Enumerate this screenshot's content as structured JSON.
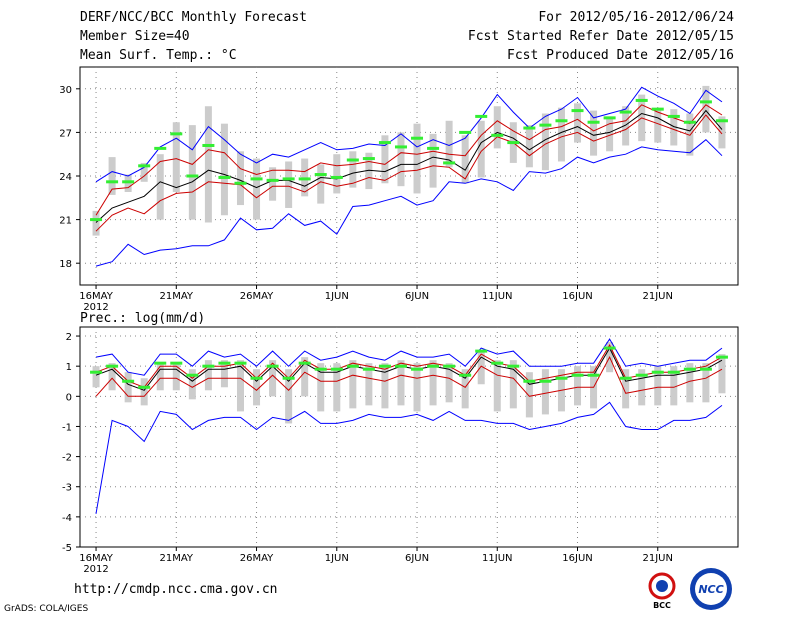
{
  "header": {
    "title": "DERF/NCC/BCC Monthly Forecast",
    "member_size": "Member Size=40",
    "variable": "Mean Surf. Temp.: °C",
    "period": "For 2012/05/16-2012/06/24",
    "fcst_started": "Fcst Started Refer Date 2012/05/15",
    "fcst_produced": "Fcst Produced Date 2012/05/16"
  },
  "footer": {
    "url": "http://cmdp.ncc.cma.gov.cn",
    "grads": "GrADS: COLA/IGES",
    "logo_bcc": "BCC",
    "logo_ncc": "NCC"
  },
  "colors": {
    "max_min": "#0000ff",
    "spread": "#cc0000",
    "mean": "#000000",
    "box": "#cccccc",
    "marker": "#33ee33"
  },
  "chart_data": [
    {
      "type": "line",
      "title": "Mean Surf. Temp.: °C",
      "ylim": [
        16.5,
        31.5
      ],
      "yticks": [
        18,
        21,
        24,
        27,
        30
      ],
      "x_tick_labels": [
        "16MAY",
        "21MAY",
        "26MAY",
        "1JUN",
        "6JUN",
        "11JUN",
        "16JUN",
        "21JUN"
      ],
      "x_tick_days": [
        0,
        5,
        10,
        15,
        20,
        25,
        30,
        35
      ],
      "x_year_label": "2012",
      "n_days": 40,
      "series": [
        {
          "name": "max",
          "values": [
            23.6,
            24.3,
            24.0,
            24.6,
            26.0,
            26.6,
            25.8,
            27.4,
            26.5,
            25.5,
            24.9,
            25.5,
            25.3,
            25.8,
            26.3,
            25.8,
            25.9,
            26.2,
            26.1,
            26.9,
            26.0,
            26.5,
            26.1,
            26.6,
            28.0,
            29.6,
            28.4,
            27.3,
            28.1,
            28.6,
            29.4,
            28.0,
            28.3,
            28.6,
            30.1,
            29.5,
            29.0,
            28.3,
            29.9,
            29.1
          ]
        },
        {
          "name": "upper",
          "values": [
            21.3,
            23.1,
            23.2,
            24.0,
            25.0,
            25.2,
            24.8,
            25.8,
            25.6,
            24.5,
            24.1,
            24.4,
            24.4,
            24.3,
            24.9,
            24.7,
            24.8,
            25.0,
            24.8,
            25.6,
            25.5,
            25.7,
            25.5,
            25.4,
            26.8,
            27.8,
            27.1,
            26.5,
            27.2,
            27.4,
            27.9,
            27.1,
            27.6,
            27.8,
            28.9,
            28.4,
            28.0,
            27.6,
            28.9,
            28.2
          ]
        },
        {
          "name": "mean",
          "values": [
            20.8,
            21.8,
            22.2,
            22.6,
            23.6,
            23.2,
            23.6,
            24.4,
            24.1,
            23.7,
            23.2,
            23.7,
            23.7,
            23.3,
            23.9,
            23.8,
            24.2,
            24.4,
            24.3,
            24.8,
            24.8,
            25.3,
            25.1,
            24.4,
            26.3,
            27.0,
            26.6,
            25.8,
            26.5,
            27.0,
            27.4,
            26.8,
            27.0,
            27.5,
            28.3,
            28.0,
            27.4,
            27.1,
            28.5,
            27.2
          ]
        },
        {
          "name": "lower",
          "values": [
            20.2,
            21.3,
            21.8,
            21.4,
            22.3,
            22.8,
            22.9,
            23.6,
            23.5,
            23.4,
            22.5,
            23.3,
            23.3,
            22.9,
            23.6,
            23.3,
            23.5,
            23.9,
            23.7,
            24.3,
            24.4,
            24.7,
            24.6,
            23.8,
            25.7,
            26.7,
            26.3,
            25.4,
            26.2,
            26.7,
            27.0,
            26.4,
            26.8,
            27.2,
            28.0,
            27.6,
            27.2,
            26.8,
            28.2,
            26.9
          ]
        },
        {
          "name": "min",
          "values": [
            17.8,
            18.1,
            19.3,
            18.6,
            18.9,
            19.0,
            19.2,
            19.2,
            19.6,
            21.1,
            20.3,
            20.4,
            21.4,
            20.6,
            20.9,
            20.0,
            21.9,
            22.0,
            22.3,
            22.6,
            22.0,
            22.3,
            23.6,
            23.5,
            23.8,
            23.6,
            23.0,
            24.3,
            24.2,
            24.5,
            25.3,
            24.9,
            25.3,
            25.5,
            26.0,
            25.8,
            25.7,
            25.6,
            26.5,
            25.4
          ]
        },
        {
          "name": "box_top",
          "values": [
            21.6,
            25.3,
            24.1,
            24.9,
            25.5,
            27.7,
            27.5,
            28.8,
            27.6,
            25.7,
            25.2,
            24.6,
            25.0,
            25.2,
            24.8,
            25.5,
            25.7,
            25.6,
            26.8,
            27.0,
            27.6,
            26.9,
            27.8,
            26.8,
            27.8,
            28.8,
            27.7,
            27.5,
            28.3,
            28.7,
            29.0,
            28.5,
            28.1,
            28.8,
            29.6,
            28.6,
            28.6,
            28.3,
            30.2,
            28.1
          ]
        },
        {
          "name": "box_bottom",
          "values": [
            19.9,
            22.7,
            22.9,
            23.6,
            21.0,
            22.9,
            21.0,
            20.8,
            21.3,
            22.0,
            21.0,
            22.3,
            21.8,
            22.6,
            22.1,
            22.8,
            23.2,
            23.1,
            23.5,
            23.3,
            22.8,
            23.2,
            24.6,
            23.5,
            23.9,
            25.9,
            24.9,
            24.6,
            24.4,
            25.0,
            26.3,
            25.4,
            25.7,
            26.1,
            26.4,
            26.3,
            26.1,
            25.4,
            27.0,
            25.9
          ]
        },
        {
          "name": "marker",
          "values": [
            21.0,
            23.6,
            23.6,
            24.7,
            25.9,
            26.9,
            24.0,
            26.1,
            23.9,
            23.5,
            23.8,
            23.7,
            23.8,
            23.8,
            24.1,
            23.9,
            25.1,
            25.2,
            26.3,
            26.0,
            26.6,
            25.9,
            24.9,
            27.0,
            28.1,
            26.8,
            26.3,
            27.3,
            27.5,
            27.8,
            28.5,
            27.7,
            28.0,
            28.4,
            29.2,
            28.6,
            28.1,
            27.7,
            29.1,
            27.8
          ]
        }
      ]
    },
    {
      "type": "line",
      "title": "Prec.: log(mm/d)",
      "ylim": [
        -5,
        2.3
      ],
      "yticks": [
        -5,
        -4,
        -3,
        -2,
        -1,
        0,
        1,
        2
      ],
      "x_tick_labels": [
        "16MAY",
        "21MAY",
        "26MAY",
        "1JUN",
        "6JUN",
        "11JUN",
        "16JUN",
        "21JUN"
      ],
      "x_tick_days": [
        0,
        5,
        10,
        15,
        20,
        25,
        30,
        35
      ],
      "x_year_label": "2012",
      "n_days": 40,
      "series": [
        {
          "name": "max",
          "values": [
            1.3,
            1.4,
            0.8,
            0.7,
            1.4,
            1.4,
            1.0,
            1.5,
            1.3,
            1.4,
            1.0,
            1.5,
            1.0,
            1.5,
            1.2,
            1.3,
            1.5,
            1.3,
            1.2,
            1.5,
            1.3,
            1.3,
            1.4,
            1.0,
            1.6,
            1.4,
            1.5,
            1.0,
            1.0,
            1.0,
            1.1,
            1.1,
            1.9,
            1.0,
            1.1,
            1.0,
            1.1,
            1.2,
            1.2,
            1.6
          ]
        },
        {
          "name": "upper",
          "values": [
            0.8,
            1.0,
            0.5,
            0.3,
            1.0,
            1.0,
            0.6,
            1.0,
            1.0,
            1.1,
            0.6,
            1.1,
            0.6,
            1.2,
            0.9,
            0.9,
            1.1,
            1.0,
            0.9,
            1.1,
            1.0,
            1.1,
            1.0,
            0.7,
            1.4,
            1.1,
            1.0,
            0.5,
            0.6,
            0.7,
            0.8,
            0.8,
            1.7,
            0.6,
            0.7,
            0.8,
            0.8,
            0.9,
            1.0,
            1.3
          ]
        },
        {
          "name": "mean",
          "values": [
            0.7,
            0.9,
            0.4,
            0.2,
            0.9,
            0.9,
            0.5,
            0.9,
            0.9,
            1.0,
            0.5,
            1.0,
            0.5,
            1.1,
            0.8,
            0.8,
            1.0,
            0.9,
            0.8,
            1.0,
            0.9,
            1.0,
            0.9,
            0.6,
            1.3,
            1.0,
            0.9,
            0.4,
            0.5,
            0.6,
            0.7,
            0.7,
            1.6,
            0.5,
            0.6,
            0.7,
            0.7,
            0.8,
            0.9,
            1.2
          ]
        },
        {
          "name": "lower",
          "values": [
            0.0,
            0.6,
            0.0,
            0.0,
            0.6,
            0.6,
            0.3,
            0.6,
            0.6,
            0.6,
            0.2,
            0.7,
            0.2,
            0.8,
            0.5,
            0.5,
            0.7,
            0.6,
            0.5,
            0.7,
            0.6,
            0.7,
            0.6,
            0.3,
            1.0,
            0.7,
            0.6,
            0.0,
            0.1,
            0.2,
            0.3,
            0.3,
            1.3,
            0.1,
            0.2,
            0.3,
            0.3,
            0.5,
            0.6,
            0.9
          ]
        },
        {
          "name": "min",
          "values": [
            -3.9,
            -0.8,
            -1.0,
            -1.5,
            -0.5,
            -0.6,
            -1.1,
            -0.8,
            -0.7,
            -0.7,
            -1.1,
            -0.7,
            -0.8,
            -0.5,
            -0.9,
            -0.9,
            -0.8,
            -0.6,
            -0.7,
            -0.7,
            -0.6,
            -0.8,
            -0.5,
            -0.8,
            -0.8,
            -0.9,
            -0.9,
            -1.1,
            -1.0,
            -0.9,
            -0.7,
            -0.6,
            -0.2,
            -1.0,
            -1.1,
            -1.1,
            -0.8,
            -0.8,
            -0.7,
            -0.3
          ]
        },
        {
          "name": "box_top",
          "values": [
            1.0,
            1.1,
            0.8,
            0.6,
            1.1,
            1.1,
            0.9,
            1.2,
            1.2,
            1.2,
            0.9,
            1.2,
            0.9,
            1.3,
            1.1,
            1.1,
            1.2,
            1.1,
            1.1,
            1.2,
            1.1,
            1.2,
            1.1,
            0.9,
            1.5,
            1.2,
            1.2,
            0.8,
            0.9,
            0.9,
            1.0,
            1.0,
            1.8,
            0.9,
            0.9,
            1.0,
            1.0,
            1.1,
            1.1,
            1.4
          ]
        },
        {
          "name": "box_bottom",
          "values": [
            0.3,
            0.2,
            -0.2,
            -0.3,
            0.2,
            0.2,
            -0.1,
            0.2,
            0.3,
            -0.5,
            -0.3,
            0.0,
            -0.9,
            0.0,
            -0.5,
            -0.5,
            -0.4,
            -0.3,
            -0.4,
            -0.3,
            -0.5,
            -0.3,
            -0.2,
            -0.4,
            0.4,
            -0.5,
            -0.4,
            -0.7,
            -0.6,
            -0.5,
            -0.3,
            -0.4,
            0.8,
            -0.4,
            -0.3,
            -0.3,
            -0.3,
            -0.2,
            -0.2,
            0.1
          ]
        },
        {
          "name": "marker",
          "values": [
            0.8,
            1.0,
            0.5,
            0.3,
            1.1,
            1.1,
            0.7,
            1.0,
            1.1,
            1.1,
            0.6,
            1.0,
            0.6,
            1.1,
            0.9,
            0.9,
            1.0,
            0.9,
            1.0,
            1.0,
            0.9,
            1.0,
            1.0,
            0.7,
            1.5,
            1.1,
            1.0,
            0.5,
            0.5,
            0.6,
            0.7,
            0.7,
            1.6,
            0.6,
            0.7,
            0.8,
            0.8,
            0.9,
            0.9,
            1.3
          ]
        }
      ]
    }
  ]
}
